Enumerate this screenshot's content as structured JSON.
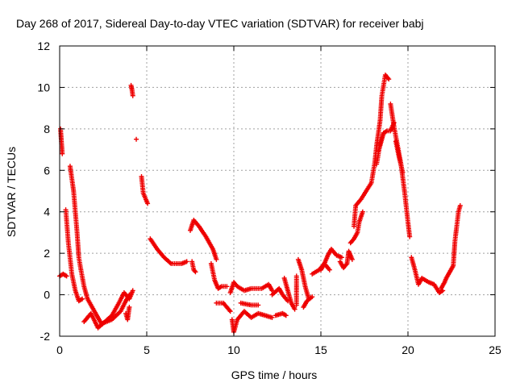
{
  "chart_data": {
    "type": "scatter",
    "title": "Day 268 of 2017, Sidereal Day-to-day VTEC variation (SDTVAR) for receiver babj",
    "xlabel": "GPS time / hours",
    "ylabel": "SDTVAR / TECUs",
    "xlim": [
      0,
      25
    ],
    "ylim": [
      -2,
      12
    ],
    "xticks": [
      0,
      5,
      10,
      15,
      20,
      25
    ],
    "yticks": [
      -2,
      0,
      2,
      4,
      6,
      8,
      10,
      12
    ],
    "grid": true,
    "marker": "+",
    "colors": {
      "series": "#ee0000",
      "grid": "#a0a0a0",
      "axis": "#000000"
    },
    "trace_segments": [
      [
        [
          0.0,
          0.9
        ],
        [
          0.2,
          1.0
        ],
        [
          0.4,
          0.9
        ]
      ],
      [
        [
          0.05,
          8.0
        ],
        [
          0.1,
          7.4
        ],
        [
          0.15,
          6.8
        ]
      ],
      [
        [
          0.35,
          4.1
        ],
        [
          0.5,
          2.5
        ],
        [
          0.7,
          1.0
        ],
        [
          0.9,
          0.2
        ],
        [
          1.1,
          -0.3
        ],
        [
          1.3,
          -0.2
        ]
      ],
      [
        [
          0.6,
          6.2
        ],
        [
          0.8,
          5.0
        ],
        [
          1.0,
          3.0
        ],
        [
          1.1,
          1.8
        ],
        [
          1.2,
          1.3
        ],
        [
          1.4,
          0.4
        ],
        [
          1.6,
          -0.2
        ],
        [
          2.0,
          -0.8
        ],
        [
          2.4,
          -1.4
        ],
        [
          3.0,
          -1.2
        ],
        [
          3.5,
          -0.8
        ],
        [
          3.8,
          -0.3
        ],
        [
          4.0,
          0.0
        ]
      ],
      [
        [
          1.4,
          -1.3
        ],
        [
          1.8,
          -0.9
        ],
        [
          2.2,
          -1.6
        ],
        [
          2.6,
          -1.3
        ],
        [
          3.0,
          -1.0
        ],
        [
          3.4,
          -0.4
        ],
        [
          3.7,
          0.1
        ],
        [
          4.0,
          -0.2
        ],
        [
          4.2,
          0.2
        ]
      ],
      [
        [
          3.8,
          -0.9
        ],
        [
          3.9,
          -1.2
        ],
        [
          4.0,
          -0.6
        ]
      ],
      [
        [
          4.1,
          10.1
        ],
        [
          4.15,
          9.9
        ],
        [
          4.2,
          9.6
        ]
      ],
      [
        [
          4.4,
          7.5
        ]
      ],
      [
        [
          4.7,
          5.7
        ],
        [
          4.8,
          4.9
        ],
        [
          4.95,
          4.6
        ],
        [
          5.05,
          4.4
        ]
      ],
      [
        [
          5.2,
          2.7
        ],
        [
          5.6,
          2.2
        ],
        [
          6.0,
          1.8
        ],
        [
          6.4,
          1.5
        ],
        [
          7.0,
          1.5
        ],
        [
          7.3,
          1.6
        ]
      ],
      [
        [
          7.6,
          1.6
        ],
        [
          7.7,
          1.2
        ],
        [
          7.8,
          1.1
        ]
      ],
      [
        [
          7.5,
          3.1
        ],
        [
          7.7,
          3.6
        ],
        [
          8.0,
          3.3
        ],
        [
          8.4,
          2.8
        ],
        [
          8.8,
          2.2
        ],
        [
          9.0,
          1.7
        ]
      ],
      [
        [
          8.7,
          1.5
        ],
        [
          8.9,
          0.7
        ],
        [
          9.1,
          0.3
        ],
        [
          9.3,
          0.4
        ],
        [
          9.6,
          0.4
        ]
      ],
      [
        [
          9.0,
          -0.4
        ],
        [
          9.4,
          -0.4
        ],
        [
          9.6,
          -0.6
        ],
        [
          9.8,
          -0.8
        ]
      ],
      [
        [
          9.8,
          0.1
        ],
        [
          10.0,
          0.6
        ],
        [
          10.2,
          0.4
        ],
        [
          10.6,
          0.2
        ],
        [
          11.0,
          0.3
        ],
        [
          11.6,
          0.3
        ],
        [
          12.0,
          0.5
        ],
        [
          12.2,
          0.2
        ]
      ],
      [
        [
          9.9,
          -1.2
        ],
        [
          10.0,
          -1.8
        ],
        [
          10.2,
          -1.2
        ],
        [
          10.6,
          -0.8
        ],
        [
          11.0,
          -1.1
        ],
        [
          11.4,
          -0.9
        ],
        [
          11.8,
          -1.0
        ],
        [
          12.2,
          -1.1
        ]
      ],
      [
        [
          10.4,
          -0.4
        ],
        [
          11.0,
          -0.5
        ],
        [
          11.4,
          -0.5
        ]
      ],
      [
        [
          12.2,
          0.0
        ],
        [
          12.6,
          0.3
        ],
        [
          12.8,
          0.0
        ],
        [
          13.1,
          -0.3
        ]
      ],
      [
        [
          12.4,
          -1.0
        ],
        [
          12.8,
          -0.9
        ],
        [
          13.0,
          -1.0
        ]
      ],
      [
        [
          12.9,
          0.8
        ],
        [
          13.1,
          0.2
        ],
        [
          13.3,
          -0.4
        ],
        [
          13.5,
          -0.7
        ]
      ],
      [
        [
          13.6,
          -0.5
        ],
        [
          13.6,
          0.9
        ]
      ],
      [
        [
          13.7,
          1.7
        ],
        [
          13.9,
          1.2
        ],
        [
          14.1,
          0.4
        ],
        [
          14.3,
          -0.2
        ]
      ],
      [
        [
          14.0,
          -0.6
        ],
        [
          14.2,
          -0.3
        ],
        [
          14.5,
          -0.1
        ]
      ],
      [
        [
          14.5,
          1.0
        ],
        [
          14.9,
          1.2
        ],
        [
          15.2,
          1.5
        ],
        [
          15.4,
          1.9
        ],
        [
          15.6,
          2.2
        ],
        [
          15.9,
          1.9
        ],
        [
          16.2,
          1.8
        ]
      ],
      [
        [
          15.0,
          1.2
        ],
        [
          15.2,
          1.5
        ],
        [
          15.5,
          1.2
        ]
      ],
      [
        [
          16.1,
          1.6
        ],
        [
          16.3,
          1.3
        ],
        [
          16.5,
          1.5
        ],
        [
          16.6,
          2.1
        ],
        [
          16.8,
          1.7
        ]
      ],
      [
        [
          16.7,
          2.5
        ],
        [
          16.9,
          2.7
        ],
        [
          17.1,
          3.0
        ],
        [
          17.2,
          3.5
        ],
        [
          17.4,
          4.0
        ]
      ],
      [
        [
          16.9,
          3.3
        ],
        [
          17.0,
          4.3
        ],
        [
          17.3,
          4.6
        ],
        [
          17.6,
          5.0
        ],
        [
          17.9,
          5.4
        ],
        [
          18.1,
          6.4
        ],
        [
          18.2,
          7.2
        ],
        [
          18.4,
          8.4
        ],
        [
          18.5,
          9.6
        ],
        [
          18.7,
          10.6
        ],
        [
          18.9,
          10.4
        ]
      ],
      [
        [
          18.2,
          6.3
        ],
        [
          18.4,
          7.3
        ],
        [
          18.6,
          7.8
        ],
        [
          18.8,
          7.9
        ],
        [
          19.0,
          7.9
        ],
        [
          19.2,
          8.3
        ]
      ],
      [
        [
          18.3,
          6.9
        ],
        [
          18.5,
          7.5
        ],
        [
          18.6,
          7.8
        ]
      ],
      [
        [
          19.0,
          9.2
        ],
        [
          19.2,
          8.1
        ],
        [
          19.4,
          7.2
        ],
        [
          19.6,
          6.3
        ],
        [
          19.8,
          5.0
        ],
        [
          20.0,
          3.5
        ],
        [
          20.1,
          2.8
        ]
      ],
      [
        [
          19.3,
          7.4
        ],
        [
          19.5,
          6.6
        ],
        [
          19.7,
          5.9
        ]
      ],
      [
        [
          20.2,
          1.8
        ],
        [
          20.4,
          1.2
        ],
        [
          20.6,
          0.5
        ],
        [
          20.8,
          0.8
        ],
        [
          21.2,
          0.6
        ],
        [
          21.5,
          0.5
        ],
        [
          21.8,
          0.1
        ],
        [
          22.0,
          0.2
        ]
      ],
      [
        [
          21.9,
          0.3
        ],
        [
          22.1,
          0.6
        ],
        [
          22.2,
          0.8
        ],
        [
          22.4,
          1.1
        ],
        [
          22.6,
          1.4
        ],
        [
          22.7,
          2.6
        ],
        [
          22.9,
          4.0
        ],
        [
          23.0,
          4.3
        ]
      ]
    ]
  }
}
